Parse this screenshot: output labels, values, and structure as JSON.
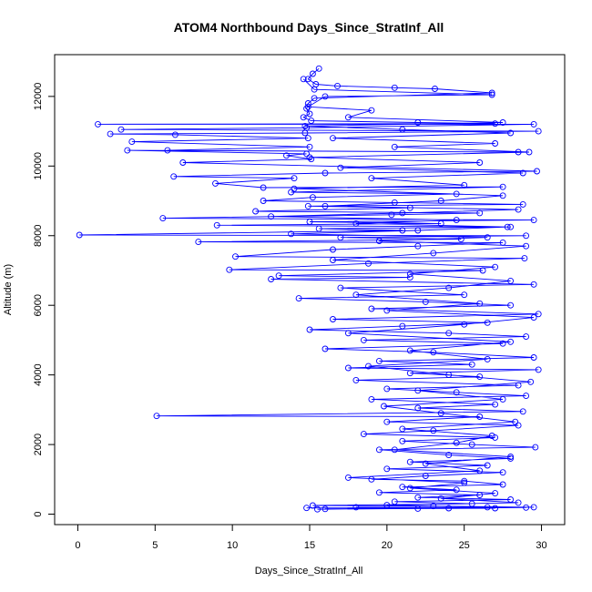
{
  "chart_data": {
    "type": "scatter",
    "title": "ATOM4 Northbound Days_Since_StratInf_All",
    "xlabel": "Days_Since_StratInf_All",
    "ylabel": "Altitude (m)",
    "xlim": [
      -1.5,
      31.5
    ],
    "ylim": [
      -300,
      13200
    ],
    "xticks": [
      0,
      5,
      10,
      15,
      20,
      25,
      30
    ],
    "yticks": [
      0,
      2000,
      4000,
      6000,
      8000,
      10000,
      12000
    ],
    "grid": false,
    "legend": "none",
    "series": [
      {
        "color": "#0000ff",
        "marker": "open-circle",
        "line": "connected",
        "points": [
          [
            15.6,
            12800
          ],
          [
            15.2,
            12650
          ],
          [
            14.9,
            12500
          ],
          [
            15.4,
            12350
          ],
          [
            16.8,
            12300
          ],
          [
            20.5,
            12250
          ],
          [
            23.1,
            12220
          ],
          [
            26.8,
            12100
          ],
          [
            15.3,
            11950
          ],
          [
            14.9,
            11800
          ],
          [
            14.8,
            11650
          ],
          [
            15.0,
            11500
          ],
          [
            14.6,
            11400
          ],
          [
            15.1,
            11300
          ],
          [
            22.0,
            11250
          ],
          [
            27.0,
            11220
          ],
          [
            1.3,
            11200
          ],
          [
            29.5,
            11200
          ],
          [
            14.8,
            11100
          ],
          [
            2.8,
            11050
          ],
          [
            29.8,
            11000
          ],
          [
            14.7,
            10950
          ],
          [
            2.1,
            10920
          ],
          [
            6.3,
            10900
          ],
          [
            14.9,
            10800
          ],
          [
            3.5,
            10700
          ],
          [
            15.0,
            10550
          ],
          [
            5.8,
            10450
          ],
          [
            28.5,
            10400
          ],
          [
            3.2,
            10450
          ],
          [
            14.8,
            10350
          ],
          [
            13.5,
            10300
          ],
          [
            15.1,
            10200
          ],
          [
            6.8,
            10100
          ],
          [
            29.7,
            9850
          ],
          [
            16.0,
            9800
          ],
          [
            6.2,
            9700
          ],
          [
            14.0,
            9650
          ],
          [
            8.9,
            9500
          ],
          [
            12.0,
            9380
          ],
          [
            27.5,
            9400
          ],
          [
            13.8,
            9250
          ],
          [
            24.5,
            9200
          ],
          [
            15.2,
            9100
          ],
          [
            12.0,
            9000
          ],
          [
            20.5,
            8950
          ],
          [
            28.8,
            8900
          ],
          [
            14.9,
            8850
          ],
          [
            21.5,
            8800
          ],
          [
            11.5,
            8700
          ],
          [
            26.0,
            8650
          ],
          [
            20.3,
            8600
          ],
          [
            5.5,
            8500
          ],
          [
            29.5,
            8450
          ],
          [
            15.0,
            8400
          ],
          [
            23.5,
            8350
          ],
          [
            9.0,
            8300
          ],
          [
            28.0,
            8250
          ],
          [
            15.6,
            8200
          ],
          [
            21.0,
            8150
          ],
          [
            0.1,
            8020
          ],
          [
            29.0,
            8000
          ],
          [
            17.0,
            7950
          ],
          [
            24.8,
            7900
          ],
          [
            7.8,
            7820
          ],
          [
            27.5,
            7800
          ],
          [
            22.0,
            7700
          ],
          [
            16.5,
            7600
          ],
          [
            10.2,
            7400
          ],
          [
            28.9,
            7350
          ],
          [
            18.8,
            7200
          ],
          [
            9.8,
            7020
          ],
          [
            26.2,
            7000
          ],
          [
            13.0,
            6850
          ],
          [
            21.5,
            6800
          ],
          [
            12.5,
            6750
          ],
          [
            29.5,
            6600
          ],
          [
            17.0,
            6500
          ],
          [
            25.0,
            6300
          ],
          [
            14.3,
            6200
          ],
          [
            22.5,
            6100
          ],
          [
            28.0,
            6000
          ],
          [
            19.0,
            5900
          ],
          [
            29.8,
            5750
          ],
          [
            16.5,
            5600
          ],
          [
            26.5,
            5500
          ],
          [
            21.0,
            5400
          ],
          [
            15.0,
            5300
          ],
          [
            24.0,
            5200
          ],
          [
            29.0,
            5100
          ],
          [
            18.5,
            5000
          ],
          [
            27.5,
            4900
          ],
          [
            16.0,
            4750
          ],
          [
            23.0,
            4650
          ],
          [
            29.5,
            4500
          ],
          [
            19.5,
            4400
          ],
          [
            25.5,
            4300
          ],
          [
            17.5,
            4200
          ],
          [
            29.8,
            4150
          ],
          [
            21.5,
            4050
          ],
          [
            26.0,
            3950
          ],
          [
            18.0,
            3850
          ],
          [
            28.5,
            3700
          ],
          [
            20.0,
            3600
          ],
          [
            24.5,
            3500
          ],
          [
            29.0,
            3400
          ],
          [
            19.0,
            3300
          ],
          [
            27.0,
            3150
          ],
          [
            22.0,
            3050
          ],
          [
            28.8,
            2950
          ],
          [
            5.1,
            2820
          ],
          [
            26.0,
            2800
          ],
          [
            20.0,
            2650
          ],
          [
            28.5,
            2550
          ],
          [
            23.0,
            2400
          ],
          [
            18.5,
            2300
          ],
          [
            27.0,
            2200
          ],
          [
            21.0,
            2100
          ],
          [
            25.5,
            2000
          ],
          [
            29.6,
            1920
          ],
          [
            19.5,
            1850
          ],
          [
            24.0,
            1700
          ],
          [
            28.0,
            1600
          ],
          [
            21.5,
            1500
          ],
          [
            26.5,
            1400
          ],
          [
            20.0,
            1300
          ],
          [
            27.5,
            1200
          ],
          [
            22.5,
            1100
          ],
          [
            19.0,
            1000
          ],
          [
            25.0,
            950
          ],
          [
            27.5,
            850
          ],
          [
            21.0,
            780
          ],
          [
            24.5,
            700
          ],
          [
            19.5,
            620
          ],
          [
            26.0,
            550
          ],
          [
            22.0,
            480
          ],
          [
            28.0,
            420
          ],
          [
            20.5,
            360
          ],
          [
            25.5,
            300
          ],
          [
            15.2,
            250
          ],
          [
            23.0,
            230
          ],
          [
            29.5,
            200
          ],
          [
            14.8,
            180
          ],
          [
            27.0,
            170
          ],
          [
            16.0,
            150
          ],
          [
            22.0,
            160
          ],
          [
            18.0,
            200
          ],
          [
            29.0,
            190
          ],
          [
            24.0,
            170
          ],
          [
            15.5,
            140
          ],
          [
            26.5,
            200
          ],
          [
            20.0,
            260
          ],
          [
            28.5,
            330
          ],
          [
            23.5,
            450
          ],
          [
            27.0,
            600
          ],
          [
            21.5,
            750
          ],
          [
            25.0,
            900
          ],
          [
            17.5,
            1050
          ],
          [
            26.0,
            1250
          ],
          [
            22.5,
            1450
          ],
          [
            28.0,
            1650
          ],
          [
            20.5,
            1850
          ],
          [
            24.5,
            2050
          ],
          [
            26.8,
            2250
          ],
          [
            21.0,
            2450
          ],
          [
            28.3,
            2650
          ],
          [
            23.5,
            2900
          ],
          [
            19.8,
            3100
          ],
          [
            27.5,
            3300
          ],
          [
            22.0,
            3550
          ],
          [
            29.3,
            3800
          ],
          [
            24.0,
            4000
          ],
          [
            18.8,
            4250
          ],
          [
            26.5,
            4450
          ],
          [
            21.5,
            4700
          ],
          [
            28.0,
            4950
          ],
          [
            17.5,
            5200
          ],
          [
            25.0,
            5450
          ],
          [
            29.5,
            5650
          ],
          [
            20.0,
            5850
          ],
          [
            26.0,
            6050
          ],
          [
            18.0,
            6300
          ],
          [
            24.0,
            6500
          ],
          [
            28.0,
            6700
          ],
          [
            21.5,
            6900
          ],
          [
            27.0,
            7100
          ],
          [
            16.5,
            7300
          ],
          [
            23.0,
            7500
          ],
          [
            29.0,
            7700
          ],
          [
            19.5,
            7850
          ],
          [
            26.5,
            7950
          ],
          [
            13.8,
            8050
          ],
          [
            22.0,
            8150
          ],
          [
            27.8,
            8250
          ],
          [
            18.0,
            8350
          ],
          [
            24.5,
            8450
          ],
          [
            12.5,
            8550
          ],
          [
            21.0,
            8650
          ],
          [
            28.5,
            8750
          ],
          [
            16.0,
            8850
          ],
          [
            23.5,
            9000
          ],
          [
            27.5,
            9150
          ],
          [
            14.0,
            9350
          ],
          [
            25.0,
            9450
          ],
          [
            19.0,
            9650
          ],
          [
            28.8,
            9800
          ],
          [
            17.0,
            9950
          ],
          [
            26.0,
            10100
          ],
          [
            15.0,
            10250
          ],
          [
            29.2,
            10400
          ],
          [
            20.5,
            10550
          ],
          [
            27.0,
            10650
          ],
          [
            16.5,
            10800
          ],
          [
            28.0,
            10950
          ],
          [
            21.0,
            11050
          ],
          [
            14.7,
            11150
          ],
          [
            27.5,
            11250
          ],
          [
            17.5,
            11400
          ],
          [
            19.0,
            11600
          ],
          [
            14.9,
            11700
          ],
          [
            16.0,
            12000
          ],
          [
            26.8,
            12050
          ],
          [
            15.3,
            12200
          ],
          [
            14.6,
            12500
          ]
        ]
      }
    ]
  }
}
